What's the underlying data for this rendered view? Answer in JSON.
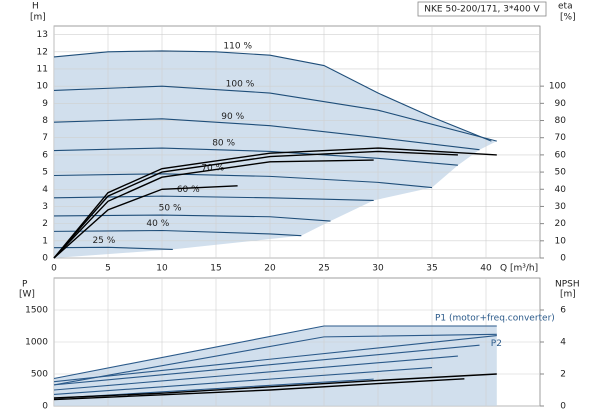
{
  "chart_data": [
    {
      "type": "line",
      "title": "NKE 50-200/171, 3*400 V",
      "x_label": "Q [m³/h]",
      "y_label": "H",
      "y_unit": "[m]",
      "y2_label": "eta",
      "y2_unit": "[%]",
      "xlim": [
        0,
        45
      ],
      "xticks": [
        0,
        5,
        10,
        15,
        20,
        25,
        30,
        35,
        40
      ],
      "ylim": [
        0,
        13.5
      ],
      "yticks": [
        0,
        1,
        2,
        3,
        4,
        5,
        6,
        7,
        8,
        9,
        10,
        11,
        12,
        13
      ],
      "y2lim": [
        0,
        135
      ],
      "y2ticks": [
        0,
        10,
        20,
        30,
        40,
        50,
        60,
        70,
        80,
        90,
        100
      ],
      "grid": true,
      "series": [
        {
          "name": "110 %",
          "color": "#1f4e79",
          "x": [
            0,
            5,
            10,
            15,
            20,
            25,
            30,
            35,
            40.5
          ],
          "values": [
            11.7,
            12.0,
            12.05,
            12.0,
            11.8,
            11.2,
            9.6,
            8.2,
            6.8
          ]
        },
        {
          "name": "100 %",
          "color": "#1f4e79",
          "x": [
            0,
            10,
            20,
            30,
            41
          ],
          "values": [
            9.75,
            10.0,
            9.6,
            8.6,
            6.8
          ]
        },
        {
          "name": "90 %",
          "color": "#1f4e79",
          "x": [
            0,
            10,
            20,
            30,
            39.4
          ],
          "values": [
            7.9,
            8.1,
            7.7,
            7.0,
            6.3
          ]
        },
        {
          "name": "80 %",
          "color": "#1f4e79",
          "x": [
            0,
            10,
            20,
            30,
            37.4
          ],
          "values": [
            6.25,
            6.4,
            6.2,
            5.8,
            5.4
          ]
        },
        {
          "name": "70 %",
          "color": "#1f4e79",
          "x": [
            0,
            10,
            20,
            30,
            35
          ],
          "values": [
            4.8,
            4.9,
            4.75,
            4.4,
            4.1
          ]
        },
        {
          "name": "60 %",
          "color": "#1f4e79",
          "x": [
            0,
            10,
            20,
            29.6
          ],
          "values": [
            3.5,
            3.6,
            3.5,
            3.35
          ]
        },
        {
          "name": "50 %",
          "color": "#1f4e79",
          "x": [
            0,
            10,
            20,
            25.6
          ],
          "values": [
            2.45,
            2.5,
            2.4,
            2.15
          ]
        },
        {
          "name": "40 %",
          "color": "#1f4e79",
          "x": [
            0,
            10,
            20,
            22.9
          ],
          "values": [
            1.55,
            1.6,
            1.4,
            1.3
          ]
        },
        {
          "name": "25 %",
          "color": "#1f4e79",
          "x": [
            0,
            5,
            11
          ],
          "values": [
            0.6,
            0.62,
            0.5
          ]
        },
        {
          "color": "#000000",
          "axis": "y2",
          "x": [
            0,
            5,
            10,
            20,
            30,
            41
          ],
          "values": [
            0,
            38,
            52,
            61,
            64,
            60
          ]
        },
        {
          "color": "#000000",
          "axis": "y2",
          "x": [
            0,
            5,
            10,
            20,
            30,
            37.4
          ],
          "values": [
            0,
            36,
            50,
            59,
            62,
            60
          ]
        },
        {
          "color": "#000000",
          "axis": "y2",
          "x": [
            0,
            5,
            10,
            20,
            29.6
          ],
          "values": [
            0,
            33,
            47,
            56,
            57
          ]
        },
        {
          "color": "#000000",
          "axis": "y2",
          "x": [
            0,
            5,
            10,
            17
          ],
          "values": [
            0,
            28,
            40,
            42
          ]
        }
      ]
    },
    {
      "type": "line",
      "y_label": "P",
      "y_unit": "[W]",
      "y2_label": "NPSH",
      "y2_unit": "[m]",
      "xlim": [
        0,
        45
      ],
      "xticks": [
        0,
        5,
        10,
        15,
        20,
        25,
        30,
        35,
        40
      ],
      "ylim": [
        0,
        2000
      ],
      "yticks": [
        0,
        500,
        1000,
        1500
      ],
      "y2lim": [
        0,
        8
      ],
      "y2ticks": [
        0,
        2,
        4,
        6
      ],
      "grid": true,
      "series": [
        {
          "name": "P1 (motor+freq.converter)",
          "color": "#2b5a8a",
          "x": [
            0,
            25,
            41
          ],
          "values": [
            430,
            1250,
            1250
          ]
        },
        {
          "color": "#2b5a8a",
          "x": [
            0,
            41
          ],
          "values": [
            380,
            1100
          ]
        },
        {
          "color": "#2b5a8a",
          "x": [
            0,
            39.4
          ],
          "values": [
            330,
            950
          ]
        },
        {
          "color": "#2b5a8a",
          "x": [
            0,
            37.4
          ],
          "values": [
            250,
            780
          ]
        },
        {
          "color": "#2b5a8a",
          "x": [
            0,
            35
          ],
          "values": [
            180,
            600
          ]
        },
        {
          "color": "#2b5a8a",
          "x": [
            0,
            29.6
          ],
          "values": [
            120,
            420
          ]
        },
        {
          "name": "P2",
          "color": "#2b5a8a",
          "x": [
            0,
            25,
            41
          ],
          "values": [
            330,
            1080,
            1120
          ]
        },
        {
          "color": "#000000",
          "axis": "y2",
          "x": [
            0,
            10,
            20,
            30,
            41
          ],
          "values": [
            0.5,
            0.8,
            1.2,
            1.6,
            2.0
          ]
        },
        {
          "color": "#000000",
          "axis": "y2",
          "x": [
            0,
            10,
            20,
            30,
            38
          ],
          "values": [
            0.4,
            0.7,
            1.0,
            1.4,
            1.7
          ]
        }
      ]
    }
  ]
}
